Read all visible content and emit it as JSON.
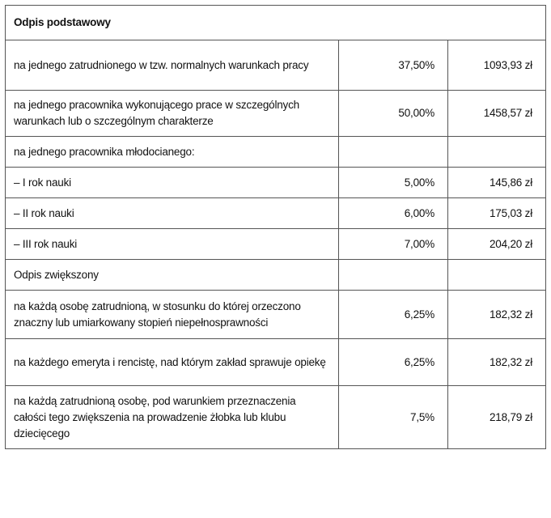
{
  "table": {
    "title": "Odpis podstawowy",
    "rows": [
      [
        "na jednego zatrudnionego w tzw. normalnych warunkach pracy",
        "37,50%",
        "1093,93 zł"
      ],
      [
        "na jednego pracownika wykonującego prace w szczególnych warunkach lub o szczególnym charakterze",
        "50,00%",
        "1458,57 zł"
      ],
      [
        "na jednego pracownika młodocianego:"
      ],
      [
        "– I rok nauki",
        "5,00%",
        "145,86 zł"
      ],
      [
        "– II rok nauki",
        "6,00%",
        "175,03 zł"
      ],
      [
        "– III rok nauki",
        "7,00%",
        "204,20 zł"
      ],
      [
        "Odpis zwiększony"
      ],
      [
        "na każdą osobę zatrudnioną, w stosunku do której orzeczono znaczny lub umiarkowany stopień niepełnosprawności",
        "6,25%",
        "182,32 zł"
      ],
      [
        "na każdego emeryta i rencistę, nad którym zakład sprawuje opiekę",
        "6,25%",
        "182,32 zł"
      ],
      [
        "na każdą zatrudnioną osobę, pod warunkiem przeznaczenia całości tego zwiększenia na prowadzenie żłobka lub klubu dziecięcego",
        "7,5%",
        "218,79 zł"
      ]
    ]
  }
}
